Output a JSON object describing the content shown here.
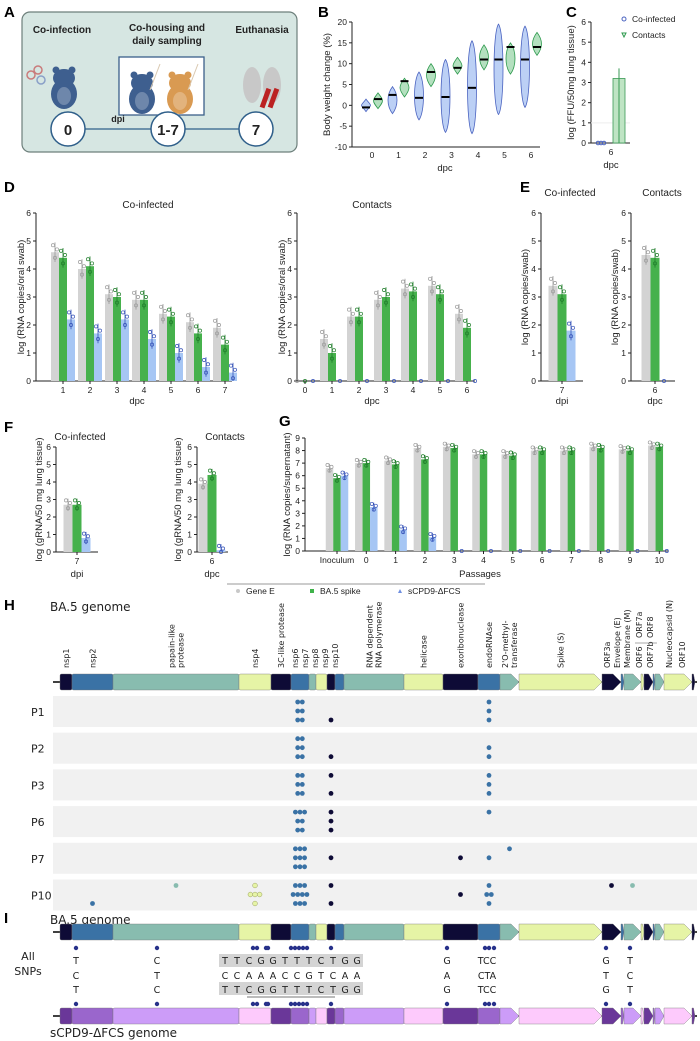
{
  "panel_labels": [
    "A",
    "B",
    "C",
    "D",
    "E",
    "F",
    "G",
    "H",
    "I"
  ],
  "panel_a": {
    "steps": [
      "Co-infection",
      "Co-housing and",
      "daily sampling",
      "Euthanasia"
    ],
    "timeline": [
      "0",
      "1-7",
      "7"
    ],
    "timeline_unit": "dpi",
    "colors": {
      "box": "#d6e6e2",
      "text": "#2f5f8a"
    }
  },
  "legend": {
    "items": [
      {
        "label": "Gene E",
        "color": "#c8c8c8",
        "marker": "circle"
      },
      {
        "label": "BA.5 spike",
        "color": "#3fb34a",
        "marker": "square"
      },
      {
        "label": "sCPD9-ΔFCS",
        "color": "#6f8fe0",
        "marker": "triangle"
      }
    ]
  },
  "chart_data": [
    {
      "id": "B",
      "type": "violin",
      "title": "",
      "xlabel": "dpc",
      "ylabel": "Body weight change (%)",
      "ylim": [
        -10,
        20
      ],
      "yticks": [
        "-10",
        "-5",
        "0",
        "5",
        "10",
        "15",
        "20"
      ],
      "categories": [
        "0",
        "1",
        "2",
        "3",
        "4",
        "5",
        "6"
      ],
      "series": [
        {
          "name": "Co-infected",
          "min": [
            -1.5,
            -2,
            -3.5,
            -6.5,
            -6.8,
            -2.2,
            -0.5
          ],
          "max": [
            1.5,
            4.5,
            8,
            11,
            15.5,
            19.5,
            19
          ],
          "median": [
            -0.5,
            2.5,
            1.8,
            2,
            4.2,
            11,
            11
          ]
        },
        {
          "name": "Contacts",
          "min": [
            -0.8,
            2,
            4.5,
            7.5,
            8.5,
            7.5,
            12
          ],
          "max": [
            3,
            6.5,
            10,
            11.5,
            14.5,
            15,
            17.5
          ],
          "median": [
            1.5,
            5.8,
            8,
            9,
            11,
            14,
            14
          ]
        }
      ]
    },
    {
      "id": "C",
      "type": "bar",
      "xlabel": "dpc",
      "ylabel": "log (FFU/50mg lung tissue)",
      "ylim": [
        0,
        6
      ],
      "yticks": [
        "0",
        "1",
        "2",
        "3",
        "4",
        "5",
        "6"
      ],
      "categories": [
        "6"
      ],
      "legend": [
        "Co-infected",
        "Contacts"
      ],
      "series": [
        {
          "name": "Co-infected",
          "values": [
            0
          ]
        },
        {
          "name": "Contacts",
          "values": [
            3.2
          ]
        }
      ]
    },
    {
      "id": "D_coinfected",
      "type": "bar",
      "title": "Co-infected",
      "xlabel": "dpc",
      "ylabel": "log (RNA copies/oral swab)",
      "ylim": [
        0,
        6
      ],
      "yticks": [
        "0",
        "1",
        "2",
        "3",
        "4",
        "5",
        "6"
      ],
      "categories": [
        "1",
        "2",
        "3",
        "4",
        "5",
        "6",
        "7"
      ],
      "series": [
        {
          "name": "Gene E",
          "values": [
            4.6,
            4.0,
            3.1,
            2.9,
            2.4,
            2.1,
            1.9
          ]
        },
        {
          "name": "BA.5 spike",
          "values": [
            4.4,
            4.1,
            3.0,
            2.9,
            2.3,
            1.7,
            1.3
          ]
        },
        {
          "name": "sCPD9-ΔFCS",
          "values": [
            2.2,
            1.7,
            2.2,
            1.5,
            1.0,
            0.5,
            0.3
          ]
        }
      ]
    },
    {
      "id": "D_contacts",
      "type": "bar",
      "title": "Contacts",
      "xlabel": "dpc",
      "ylabel": "log (RNA copies/oral swab)",
      "ylim": [
        0,
        6
      ],
      "yticks": [
        "0",
        "1",
        "2",
        "3",
        "4",
        "5",
        "6"
      ],
      "categories": [
        "0",
        "1",
        "2",
        "3",
        "4",
        "5",
        "6"
      ],
      "series": [
        {
          "name": "Gene E",
          "values": [
            0,
            1.5,
            2.3,
            2.9,
            3.3,
            3.4,
            2.4
          ]
        },
        {
          "name": "BA.5 spike",
          "values": [
            0,
            1.0,
            2.3,
            3.0,
            3.2,
            3.1,
            1.9
          ]
        },
        {
          "name": "sCPD9-ΔFCS",
          "values": [
            0,
            0,
            0,
            0,
            0,
            0,
            0
          ]
        }
      ]
    },
    {
      "id": "E_coinfected",
      "type": "bar",
      "title": "Co-infected",
      "xlabel": "dpi",
      "ylabel": "log (RNA copies/swab)",
      "ylim": [
        0,
        6
      ],
      "yticks": [
        "0",
        "1",
        "2",
        "3",
        "4",
        "5",
        "6"
      ],
      "categories": [
        "7"
      ],
      "series": [
        {
          "name": "Gene E",
          "values": [
            3.4
          ]
        },
        {
          "name": "BA.5 spike",
          "values": [
            3.1
          ]
        },
        {
          "name": "sCPD9-ΔFCS",
          "values": [
            1.8
          ]
        }
      ]
    },
    {
      "id": "E_contacts",
      "type": "bar",
      "title": "Contacts",
      "xlabel": "dpc",
      "ylabel": "log (RNA copies/swab)",
      "ylim": [
        0,
        6
      ],
      "yticks": [
        "0",
        "1",
        "2",
        "3",
        "4",
        "5",
        "6"
      ],
      "categories": [
        "6"
      ],
      "series": [
        {
          "name": "Gene E",
          "values": [
            4.5
          ]
        },
        {
          "name": "BA.5 spike",
          "values": [
            4.4
          ]
        },
        {
          "name": "sCPD9-ΔFCS",
          "values": [
            0
          ]
        }
      ]
    },
    {
      "id": "F_coinfected",
      "type": "bar",
      "title": "Co-infected",
      "xlabel": "dpi",
      "ylabel": "log (gRNA/50 mg lung tissue)",
      "ylim": [
        0,
        6
      ],
      "yticks": [
        "0",
        "1",
        "2",
        "3",
        "4",
        "5",
        "6"
      ],
      "categories": [
        "7"
      ],
      "series": [
        {
          "name": "Gene E",
          "values": [
            2.7
          ]
        },
        {
          "name": "BA.5 spike",
          "values": [
            2.7
          ]
        },
        {
          "name": "sCPD9-ΔFCS",
          "values": [
            0.8
          ]
        }
      ]
    },
    {
      "id": "F_contacts",
      "type": "bar",
      "title": "Contacts",
      "xlabel": "dpc",
      "ylabel": "log (gRNA/50 mg lung tissue)",
      "ylim": [
        0,
        6
      ],
      "yticks": [
        "0",
        "1",
        "2",
        "3",
        "4",
        "5",
        "6"
      ],
      "categories": [
        "6"
      ],
      "series": [
        {
          "name": "Gene E",
          "values": [
            3.9
          ]
        },
        {
          "name": "BA.5 spike",
          "values": [
            4.4
          ]
        },
        {
          "name": "sCPD9-ΔFCS",
          "values": [
            0.1
          ]
        }
      ]
    },
    {
      "id": "G",
      "type": "bar",
      "title": "",
      "xlabel": "Passages",
      "ylabel": "log (RNA copies/supernatant)",
      "ylim": [
        0,
        9
      ],
      "yticks": [
        "0",
        "1",
        "2",
        "3",
        "4",
        "5",
        "6",
        "7",
        "8",
        "9"
      ],
      "categories": [
        "Inoculum",
        "0",
        "1",
        "2",
        "3",
        "4",
        "5",
        "6",
        "7",
        "8",
        "9",
        "10"
      ],
      "series": [
        {
          "name": "Gene E",
          "values": [
            6.6,
            7.0,
            7.2,
            8.2,
            8.3,
            7.7,
            7.7,
            8.0,
            8.0,
            8.3,
            8.1,
            8.4
          ]
        },
        {
          "name": "BA.5 spike",
          "values": [
            5.8,
            7.0,
            6.9,
            7.3,
            8.2,
            7.7,
            7.6,
            8.0,
            8.0,
            8.2,
            8.0,
            8.3
          ]
        },
        {
          "name": "sCPD9-ΔFCS",
          "values": [
            6.0,
            3.5,
            1.7,
            1.1,
            0,
            0,
            0,
            0,
            0,
            0,
            0,
            0
          ]
        }
      ]
    }
  ],
  "genome": {
    "title_ba5": "BA.5 genome",
    "title_scpd9": "sCPD9-ΔFCS genome",
    "colors": {
      "dark": "#0e0b36",
      "blue": "#3a72a5",
      "teal": "#88bcaf",
      "pale": "#e6f4a6",
      "p_dark": "#6a3799",
      "p_mid": "#9a66cc",
      "p_light": "#cc9cf8",
      "p_pink": "#fdcafc"
    },
    "genes": [
      {
        "label": [
          "nsp1"
        ],
        "color": "dark"
      },
      {
        "label": [
          "nsp2"
        ],
        "color": "blue"
      },
      {
        "label": [
          "papain-like",
          "protease"
        ],
        "color": "teal"
      },
      {
        "label": [
          "nsp4"
        ],
        "color": "pale"
      },
      {
        "label": [
          "3C-like protease"
        ],
        "color": "dark"
      },
      {
        "label": [
          "nsp6"
        ],
        "color": "blue"
      },
      {
        "label": [
          "nsp7"
        ],
        "color": "teal"
      },
      {
        "label": [
          "nsp8"
        ],
        "color": "pale"
      },
      {
        "label": [
          "nsp9"
        ],
        "color": "dark"
      },
      {
        "label": [
          "nsp10"
        ],
        "color": "blue"
      },
      {
        "label": [
          "RNA dependent",
          "RNA polymerase"
        ],
        "color": "teal"
      },
      {
        "label": [
          "helicase"
        ],
        "color": "pale"
      },
      {
        "label": [
          "exoribonuclease"
        ],
        "color": "dark"
      },
      {
        "label": [
          "endoRNAse"
        ],
        "color": "blue"
      },
      {
        "label": [
          "2'O-methyl-",
          "transferase"
        ],
        "color": "teal"
      },
      {
        "label": [
          "Spike (S)"
        ],
        "color": "pale"
      },
      {
        "label": [
          "ORF3a"
        ],
        "color": "dark"
      },
      {
        "label": [
          "Envelope (E)"
        ],
        "color": "blue"
      },
      {
        "label": [
          "Membrane (M)"
        ],
        "color": "teal"
      },
      {
        "label": [
          "ORF6"
        ],
        "color": "pale"
      },
      {
        "label": [
          "ORF7a"
        ],
        "color": "dark"
      },
      {
        "label": [
          "ORF7b"
        ],
        "color": "blue"
      },
      {
        "label": [
          "ORF8"
        ],
        "color": "teal"
      },
      {
        "label": [
          "Nucleocapsid (N)"
        ],
        "color": "pale"
      },
      {
        "label": [
          "ORF10"
        ],
        "color": "dark"
      }
    ],
    "passages": [
      {
        "label": "P1",
        "mutations": [
          {
            "gene": 5,
            "grid": [
              2,
              2,
              2
            ],
            "color": "blue"
          },
          {
            "gene": 8,
            "grid": [
              0,
              0,
              1
            ],
            "color": "dark"
          },
          {
            "gene": 13,
            "grid": [
              1,
              1,
              1
            ],
            "color": "blue"
          }
        ]
      },
      {
        "label": "P2",
        "mutations": [
          {
            "gene": 5,
            "grid": [
              2,
              2,
              2
            ],
            "color": "blue"
          },
          {
            "gene": 8,
            "grid": [
              0,
              0,
              1
            ],
            "color": "dark"
          },
          {
            "gene": 13,
            "grid": [
              0,
              1,
              1
            ],
            "color": "blue"
          }
        ]
      },
      {
        "label": "P3",
        "mutations": [
          {
            "gene": 5,
            "grid": [
              2,
              2,
              2
            ],
            "color": "blue"
          },
          {
            "gene": 8,
            "grid": [
              1,
              0,
              1
            ],
            "color": "dark"
          },
          {
            "gene": 13,
            "grid": [
              1,
              1,
              1
            ],
            "color": "blue"
          }
        ]
      },
      {
        "label": "P6",
        "mutations": [
          {
            "gene": 5,
            "grid": [
              3,
              2,
              2
            ],
            "color": "blue"
          },
          {
            "gene": 8,
            "grid": [
              1,
              1,
              1
            ],
            "color": "dark"
          },
          {
            "gene": 13,
            "grid": [
              1,
              0,
              0
            ],
            "color": "blue"
          }
        ]
      },
      {
        "label": "P7",
        "mutations": [
          {
            "gene": 5,
            "grid": [
              3,
              3,
              3
            ],
            "color": "blue"
          },
          {
            "gene": 8,
            "grid": [
              0,
              1,
              0
            ],
            "color": "dark"
          },
          {
            "gene": 12,
            "grid": [
              0,
              1,
              0
            ],
            "color": "dark"
          },
          {
            "gene": 13,
            "grid": [
              0,
              1,
              0
            ],
            "color": "blue"
          },
          {
            "gene": 14,
            "grid": [
              1,
              0,
              0
            ],
            "color": "blue"
          }
        ]
      },
      {
        "label": "P10",
        "mutations": [
          {
            "gene": 1,
            "grid": [
              0,
              0,
              1
            ],
            "color": "blue"
          },
          {
            "gene": 2,
            "grid": [
              1,
              0,
              0
            ],
            "color": "teal"
          },
          {
            "gene": 3,
            "grid": [
              1,
              3,
              1
            ],
            "color": "pale"
          },
          {
            "gene": 5,
            "grid": [
              3,
              4,
              3
            ],
            "color": "blue"
          },
          {
            "gene": 8,
            "grid": [
              1,
              0,
              1
            ],
            "color": "dark"
          },
          {
            "gene": 12,
            "grid": [
              0,
              1,
              0
            ],
            "color": "dark"
          },
          {
            "gene": 13,
            "grid": [
              1,
              2,
              1
            ],
            "color": "blue"
          },
          {
            "gene": 16,
            "grid": [
              1,
              0,
              0
            ],
            "color": "dark"
          },
          {
            "gene": 18,
            "grid": [
              1,
              0,
              0
            ],
            "color": "teal"
          }
        ]
      }
    ],
    "snps": {
      "label": [
        "All",
        "SNPs"
      ],
      "ba5": [
        "T",
        "C",
        "T",
        "T",
        "C",
        "G",
        "G",
        "T",
        "T",
        "T",
        "C",
        "T",
        "G",
        "G",
        "G",
        "TCC",
        "G",
        "T"
      ],
      "alt": [
        "C",
        "T",
        "C",
        "C",
        "A",
        "A",
        "A",
        "C",
        "C",
        "G",
        "T",
        "C",
        "A",
        "A",
        "A",
        "CTA",
        "T",
        "C"
      ],
      "scpd9": [
        "T",
        "C",
        "T",
        "T",
        "C",
        "G",
        "G",
        "T",
        "T",
        "T",
        "C",
        "T",
        "G",
        "G",
        "G",
        "TCC",
        "G",
        "T"
      ],
      "snp_color": "#b01c1c"
    }
  }
}
